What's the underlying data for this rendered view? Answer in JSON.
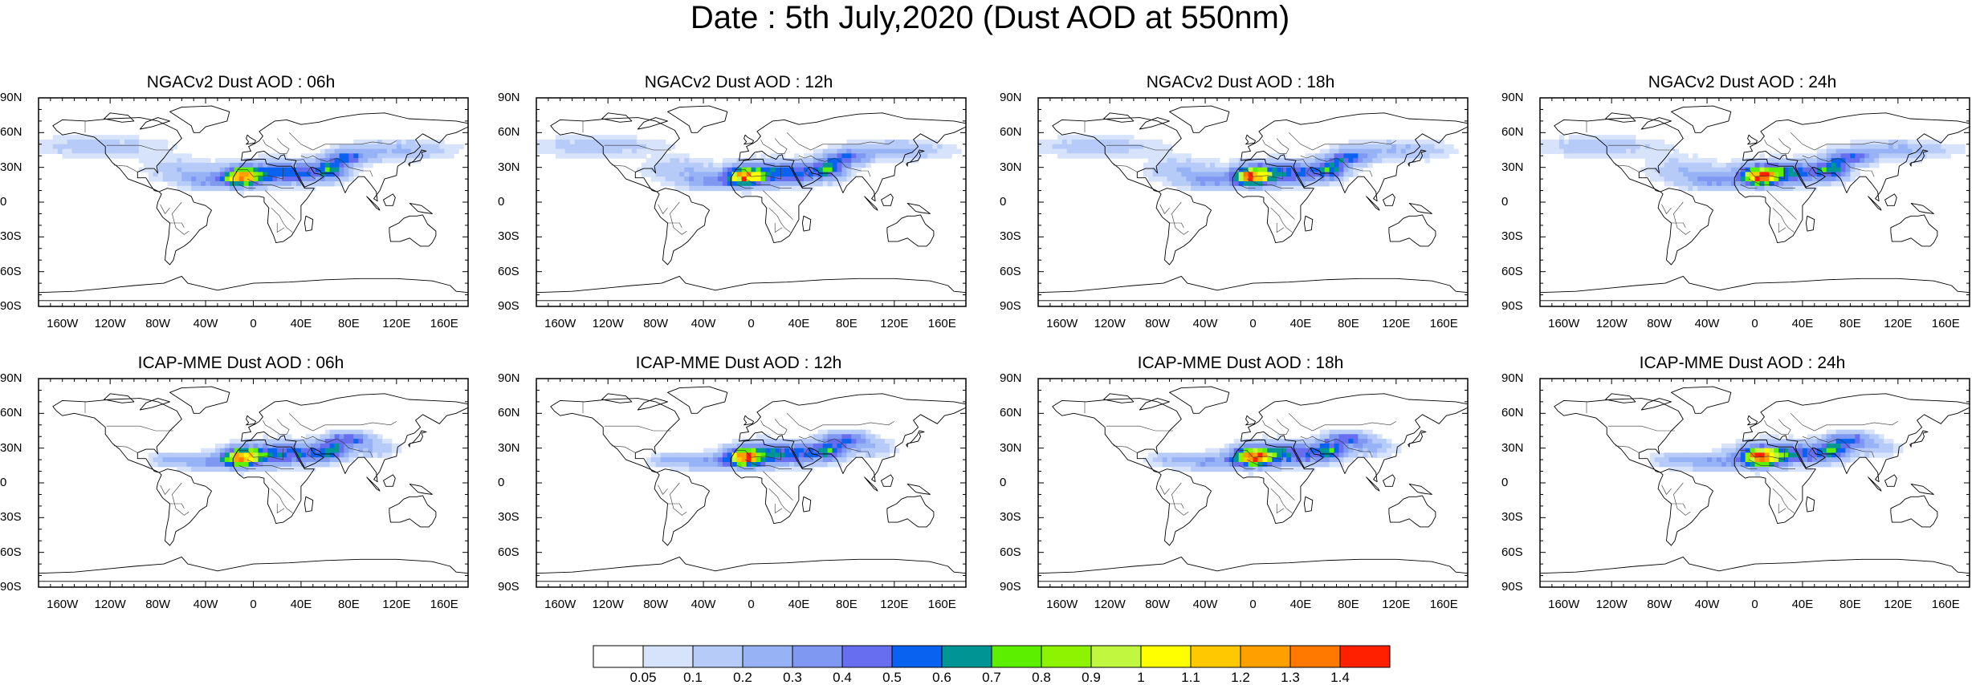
{
  "title": "Date : 5th July,2020 (Dust AOD at 550nm)",
  "panels": [
    {
      "title": "NGACv2 Dust AOD : 06h",
      "model": "NGACv2",
      "hour": 6
    },
    {
      "title": "NGACv2 Dust AOD : 12h",
      "model": "NGACv2",
      "hour": 12
    },
    {
      "title": "NGACv2 Dust AOD : 18h",
      "model": "NGACv2",
      "hour": 18
    },
    {
      "title": "NGACv2 Dust AOD : 24h",
      "model": "NGACv2",
      "hour": 24
    },
    {
      "title": "ICAP-MME Dust AOD : 06h",
      "model": "ICAP-MME",
      "hour": 6
    },
    {
      "title": "ICAP-MME Dust AOD : 12h",
      "model": "ICAP-MME",
      "hour": 12
    },
    {
      "title": "ICAP-MME Dust AOD : 18h",
      "model": "ICAP-MME",
      "hour": 18
    },
    {
      "title": "ICAP-MME Dust AOD : 24h",
      "model": "ICAP-MME",
      "hour": 24
    }
  ],
  "lat_ticks": [
    "90N",
    "60N",
    "30N",
    "0",
    "30S",
    "60S",
    "90S"
  ],
  "lon_ticks": [
    "160W",
    "120W",
    "80W",
    "40W",
    "0",
    "40E",
    "80E",
    "120E",
    "160E"
  ],
  "colorbar": {
    "colors": [
      "#ffffff",
      "#d7e3fb",
      "#b7cbf8",
      "#97b3f5",
      "#7f98f2",
      "#676ef0",
      "#0a62f0",
      "#009595",
      "#5cf000",
      "#8ef300",
      "#c2f73f",
      "#ffff00",
      "#ffc800",
      "#ffa000",
      "#ff7800",
      "#ff2000"
    ],
    "labels": [
      "0.05",
      "0.1",
      "0.2",
      "0.3",
      "0.4",
      "0.5",
      "0.6",
      "0.7",
      "0.8",
      "0.9",
      "1",
      "1.1",
      "1.2",
      "1.3",
      "1.4"
    ]
  }
}
